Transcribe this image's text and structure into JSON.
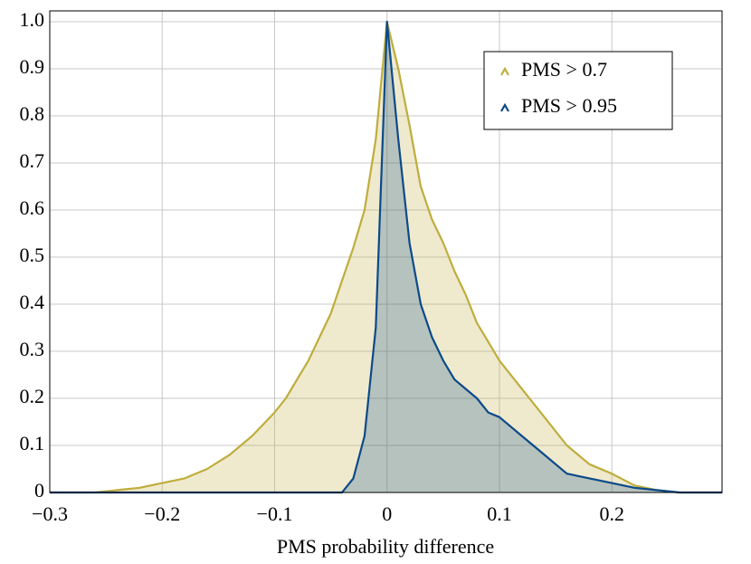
{
  "chart_data": {
    "type": "area",
    "xlabel": "PMS probability difference",
    "x": [
      -0.3,
      -0.26,
      -0.24,
      -0.22,
      -0.2,
      -0.18,
      -0.16,
      -0.14,
      -0.12,
      -0.1,
      -0.09,
      -0.08,
      -0.07,
      -0.06,
      -0.05,
      -0.04,
      -0.03,
      -0.02,
      -0.01,
      0,
      0.01,
      0.02,
      0.03,
      0.04,
      0.05,
      0.06,
      0.07,
      0.08,
      0.09,
      0.1,
      0.12,
      0.14,
      0.16,
      0.18,
      0.2,
      0.22,
      0.24,
      0.26,
      0.298
    ],
    "series": [
      {
        "name": "PMS > 0.7",
        "color": "#bfad3c",
        "values": [
          0,
          0,
          0.005,
          0.01,
          0.02,
          0.03,
          0.05,
          0.08,
          0.12,
          0.17,
          0.2,
          0.24,
          0.28,
          0.33,
          0.38,
          0.45,
          0.52,
          0.6,
          0.75,
          1.0,
          0.9,
          0.78,
          0.65,
          0.58,
          0.53,
          0.47,
          0.42,
          0.36,
          0.32,
          0.28,
          0.22,
          0.16,
          0.1,
          0.06,
          0.04,
          0.015,
          0.005,
          0,
          0
        ]
      },
      {
        "name": "PMS > 0.95",
        "color": "#0b4a8a",
        "values": [
          0,
          0,
          0,
          0,
          0,
          0,
          0,
          0,
          0,
          0,
          0,
          0,
          0,
          0,
          0,
          0,
          0.03,
          0.12,
          0.35,
          1.0,
          0.75,
          0.53,
          0.4,
          0.33,
          0.28,
          0.24,
          0.22,
          0.2,
          0.17,
          0.16,
          0.12,
          0.08,
          0.04,
          0.03,
          0.02,
          0.01,
          0.005,
          0,
          0
        ]
      }
    ],
    "xlim": [
      -0.3,
      0.298
    ],
    "ylim": [
      0,
      1.023
    ],
    "xticks": [
      {
        "value": -0.3,
        "label": "−0.3"
      },
      {
        "value": -0.2,
        "label": "−0.2"
      },
      {
        "value": -0.1,
        "label": "−0.1"
      },
      0,
      0.1,
      0.2
    ],
    "yticks": [
      0,
      0.1,
      0.2,
      0.3,
      0.4,
      0.5,
      0.6,
      0.7,
      0.8,
      0.9,
      {
        "value": 1,
        "label": "1.0"
      }
    ],
    "grid": true,
    "legend": "upper right"
  }
}
